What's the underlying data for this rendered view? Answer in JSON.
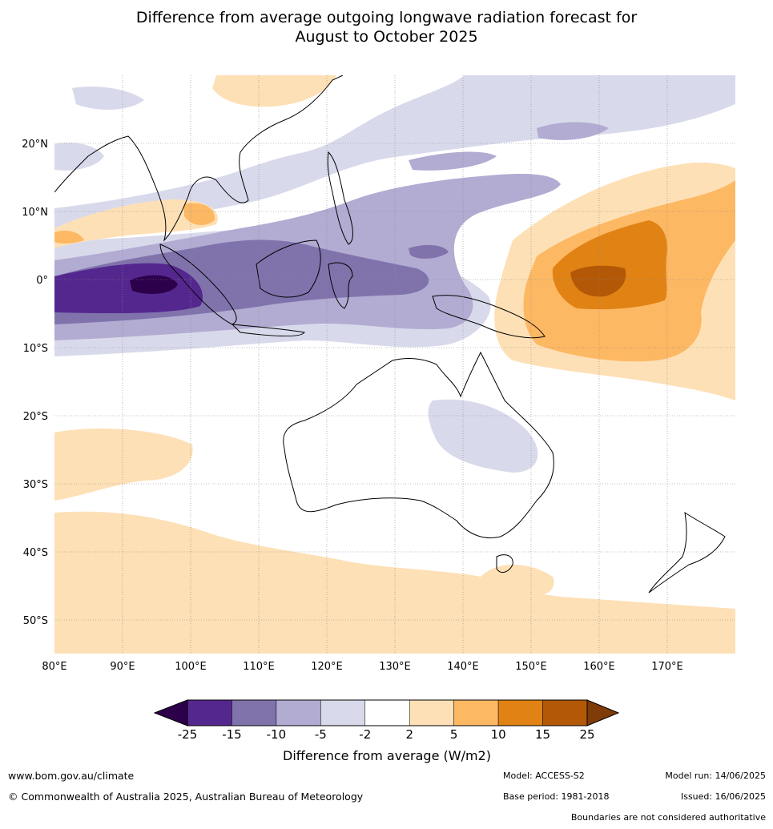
{
  "title_line1": "Difference from average outgoing longwave radiation forecast for",
  "title_line2": "August to October 2025",
  "map": {
    "lon_ticks": [
      "80°E",
      "90°E",
      "100°E",
      "110°E",
      "120°E",
      "130°E",
      "140°E",
      "150°E",
      "160°E",
      "170°E"
    ],
    "lat_ticks": [
      "20°N",
      "10°N",
      "0°",
      "10°S",
      "20°S",
      "30°S",
      "40°S",
      "50°S"
    ],
    "extent": {
      "lon_min": 80,
      "lon_max": 180,
      "lat_min": -55,
      "lat_max": 30
    }
  },
  "colorbar": {
    "label": "Difference from average (W/m2)",
    "tick_labels": [
      "-25",
      "-15",
      "-10",
      "-5",
      "-2",
      "2",
      "5",
      "10",
      "15",
      "25"
    ],
    "colors": [
      "#54278f",
      "#8073ac",
      "#b2abd2",
      "#d8daeb",
      "#ffffff",
      "#fee0b6",
      "#fdb863",
      "#e08214",
      "#b35806"
    ],
    "under_color": "#2d004b",
    "over_color": "#7f3b08"
  },
  "footer": {
    "website": "www.bom.gov.au/climate",
    "copyright": "© Commonwealth of Australia 2025, Australian Bureau of Meteorology",
    "model": "Model: ACCESS-S2",
    "model_run": "Model run: 14/06/2025",
    "base_period": "Base period: 1981-2018",
    "issued": "Issued: 16/06/2025",
    "disclaimer": "Boundaries are not considered authoritative"
  }
}
